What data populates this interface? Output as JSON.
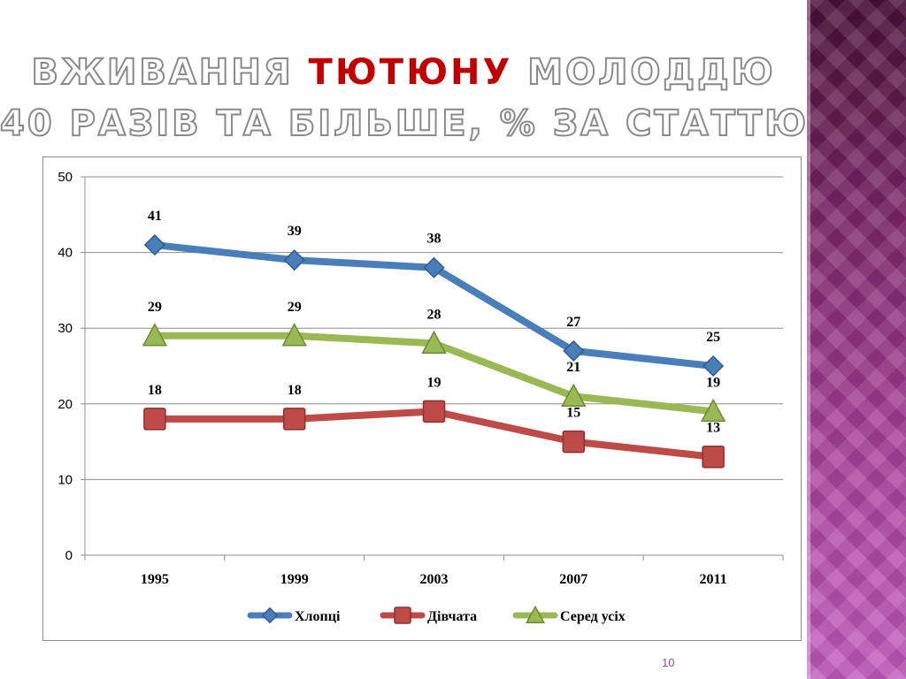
{
  "slide": {
    "title_line1_part1": "ВЖИВАННЯ",
    "title_line1_accent": "ТЮТЮНУ",
    "title_line1_part2": "МОЛОДДЮ",
    "title_line2": "40 РАЗІВ ТА БІЛЬШЕ, % ЗА СТАТТЮ",
    "page_number": "10",
    "accent_color": "#c00000"
  },
  "chart_data": {
    "type": "line",
    "title": "",
    "xlabel": "",
    "ylabel": "",
    "categories": [
      "1995",
      "1999",
      "2003",
      "2007",
      "2011"
    ],
    "ylim": [
      0,
      50
    ],
    "yticks": [
      0,
      10,
      20,
      30,
      40,
      50
    ],
    "grid": true,
    "legend_position": "bottom",
    "series": [
      {
        "name": "Хлопці",
        "values": [
          41,
          39,
          38,
          27,
          25
        ],
        "color": "#4a7ebb",
        "marker": "diamond"
      },
      {
        "name": "Дівчата",
        "values": [
          18,
          18,
          19,
          15,
          13
        ],
        "color": "#be4b48",
        "marker": "square"
      },
      {
        "name": "Серед усіх",
        "values": [
          29,
          29,
          28,
          21,
          19
        ],
        "color": "#98b954",
        "marker": "triangle"
      }
    ]
  }
}
